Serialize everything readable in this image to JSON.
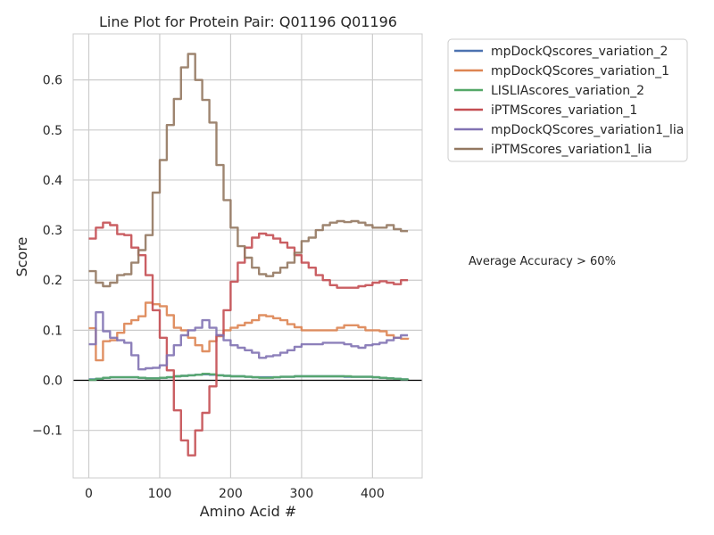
{
  "chart_data": {
    "type": "line",
    "title": "Line Plot for Protein Pair: Q01196 Q01196",
    "xlabel": "Amino Acid #",
    "ylabel": "Score",
    "xlim": [
      -22,
      470
    ],
    "ylim": [
      -0.195,
      0.692
    ],
    "xticks": [
      0,
      100,
      200,
      300,
      400
    ],
    "yticks": [
      -0.1,
      0.0,
      0.1,
      0.2,
      0.3,
      0.4,
      0.5,
      0.6
    ],
    "ytick_labels": [
      "−0.1",
      "0.0",
      "0.1",
      "0.2",
      "0.3",
      "0.4",
      "0.5",
      "0.6"
    ],
    "grid": true,
    "legend_position": "outside top-right",
    "annotation": "Average Accuracy > 60%",
    "x": [
      0,
      10,
      20,
      30,
      40,
      50,
      60,
      70,
      80,
      90,
      100,
      110,
      120,
      130,
      140,
      150,
      160,
      170,
      180,
      190,
      200,
      210,
      220,
      230,
      240,
      250,
      260,
      270,
      280,
      290,
      300,
      310,
      320,
      330,
      340,
      350,
      360,
      370,
      380,
      390,
      400,
      410,
      420,
      430,
      440,
      450
    ],
    "series": [
      {
        "name": "mpDockQscores_variation_2",
        "color": "#4c72b0",
        "values": [
          0.002,
          0.003,
          0.005,
          0.006,
          0.006,
          0.006,
          0.006,
          0.005,
          0.004,
          0.004,
          0.005,
          0.006,
          0.008,
          0.009,
          0.01,
          0.011,
          0.012,
          0.011,
          0.01,
          0.009,
          0.008,
          0.008,
          0.007,
          0.006,
          0.006,
          0.006,
          0.006,
          0.007,
          0.007,
          0.008,
          0.008,
          0.008,
          0.008,
          0.008,
          0.008,
          0.008,
          0.007,
          0.007,
          0.007,
          0.007,
          0.006,
          0.005,
          0.004,
          0.003,
          0.002,
          0.002
        ]
      },
      {
        "name": "mpDockQScores_variation_1",
        "color": "#dd8452",
        "values": [
          0.104,
          0.04,
          0.078,
          0.08,
          0.095,
          0.113,
          0.12,
          0.128,
          0.155,
          0.152,
          0.148,
          0.13,
          0.105,
          0.1,
          0.085,
          0.07,
          0.058,
          0.078,
          0.088,
          0.1,
          0.105,
          0.11,
          0.115,
          0.12,
          0.13,
          0.128,
          0.124,
          0.12,
          0.112,
          0.106,
          0.1,
          0.1,
          0.1,
          0.1,
          0.1,
          0.105,
          0.11,
          0.11,
          0.106,
          0.1,
          0.1,
          0.098,
          0.09,
          0.085,
          0.083,
          0.085
        ]
      },
      {
        "name": "LISLIAscores_variation_2",
        "color": "#55a868",
        "values": [
          0.001,
          0.003,
          0.005,
          0.006,
          0.006,
          0.006,
          0.006,
          0.005,
          0.004,
          0.004,
          0.005,
          0.006,
          0.008,
          0.009,
          0.01,
          0.011,
          0.013,
          0.012,
          0.01,
          0.009,
          0.008,
          0.008,
          0.007,
          0.006,
          0.005,
          0.005,
          0.006,
          0.007,
          0.007,
          0.008,
          0.008,
          0.008,
          0.008,
          0.008,
          0.008,
          0.008,
          0.008,
          0.007,
          0.007,
          0.007,
          0.006,
          0.005,
          0.004,
          0.003,
          0.002,
          0.001
        ]
      },
      {
        "name": "iPTMScores_variation_1",
        "color": "#c44e52",
        "values": [
          0.283,
          0.305,
          0.315,
          0.31,
          0.292,
          0.29,
          0.265,
          0.25,
          0.21,
          0.14,
          0.085,
          0.02,
          -0.06,
          -0.12,
          -0.15,
          -0.1,
          -0.065,
          -0.012,
          0.09,
          0.14,
          0.197,
          0.235,
          0.265,
          0.285,
          0.293,
          0.29,
          0.283,
          0.275,
          0.265,
          0.25,
          0.235,
          0.225,
          0.21,
          0.2,
          0.19,
          0.185,
          0.185,
          0.185,
          0.188,
          0.19,
          0.195,
          0.198,
          0.195,
          0.192,
          0.2,
          0.2
        ]
      },
      {
        "name": "mpDockQScores_variation1_lia",
        "color": "#8172b3",
        "values": [
          0.072,
          0.136,
          0.098,
          0.085,
          0.08,
          0.075,
          0.05,
          0.022,
          0.024,
          0.025,
          0.03,
          0.05,
          0.07,
          0.09,
          0.1,
          0.105,
          0.12,
          0.105,
          0.09,
          0.08,
          0.07,
          0.065,
          0.06,
          0.055,
          0.045,
          0.048,
          0.05,
          0.055,
          0.06,
          0.067,
          0.072,
          0.072,
          0.072,
          0.075,
          0.075,
          0.075,
          0.072,
          0.068,
          0.065,
          0.07,
          0.072,
          0.075,
          0.08,
          0.085,
          0.09,
          0.09
        ]
      },
      {
        "name": "iPTMScores_variation1_lia",
        "color": "#937860",
        "values": [
          0.218,
          0.195,
          0.188,
          0.195,
          0.21,
          0.212,
          0.235,
          0.26,
          0.29,
          0.375,
          0.44,
          0.51,
          0.562,
          0.625,
          0.652,
          0.6,
          0.56,
          0.515,
          0.43,
          0.36,
          0.305,
          0.268,
          0.245,
          0.225,
          0.212,
          0.208,
          0.215,
          0.225,
          0.235,
          0.255,
          0.278,
          0.285,
          0.3,
          0.31,
          0.315,
          0.318,
          0.316,
          0.318,
          0.315,
          0.31,
          0.305,
          0.305,
          0.31,
          0.302,
          0.298,
          0.298
        ]
      }
    ]
  }
}
